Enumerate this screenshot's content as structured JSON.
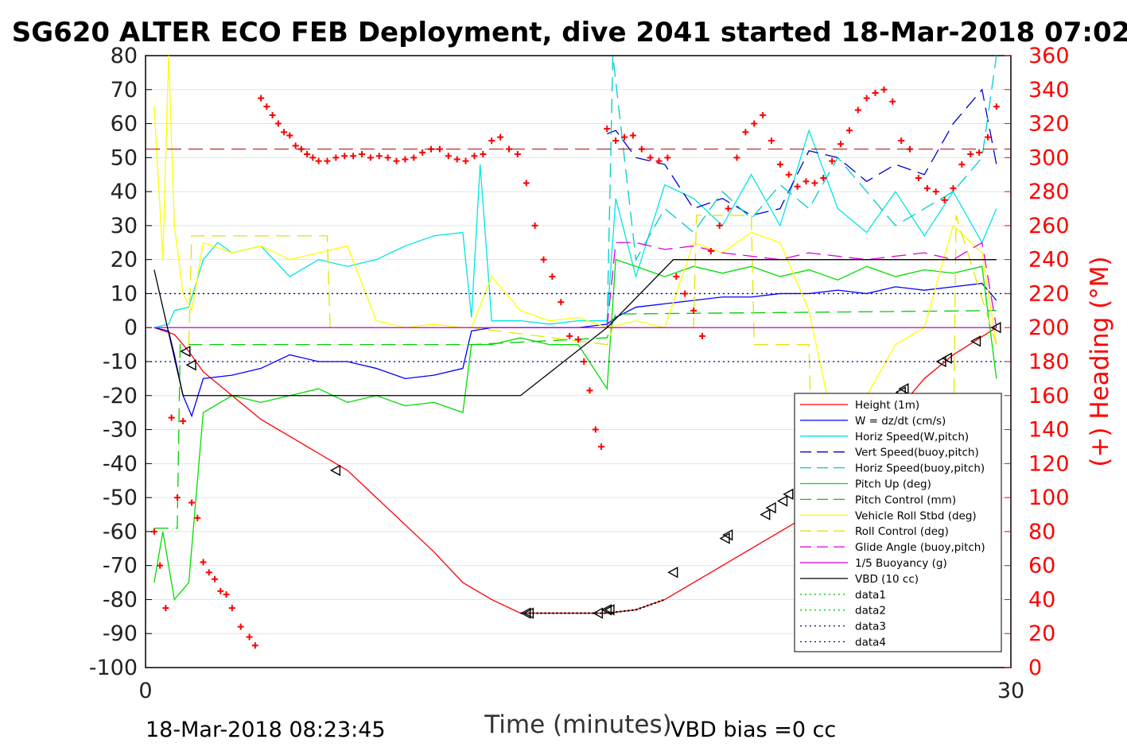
{
  "chart_data": {
    "type": "line",
    "title": "SG620 ALTER ECO FEB Deployment, dive 2041 started 18-Mar-2018 07:02",
    "xlabel": "Time (minutes)",
    "ylabel_right": "(+) Heading (°M)",
    "xlim": [
      0,
      30
    ],
    "ylim_left": [
      -100,
      80
    ],
    "ylim_right": [
      0,
      360
    ],
    "x_ticks": [
      "0",
      "30"
    ],
    "y_ticks_left": [
      "80",
      "70",
      "60",
      "50",
      "40",
      "30",
      "20",
      "10",
      "0",
      "-10",
      "-20",
      "-30",
      "-40",
      "-50",
      "-60",
      "-70",
      "-80",
      "-90",
      "-100"
    ],
    "y_ticks_right": [
      "360",
      "340",
      "320",
      "300",
      "280",
      "260",
      "240",
      "220",
      "200",
      "180",
      "160",
      "140",
      "120",
      "100",
      "80",
      "60",
      "40",
      "20",
      "0"
    ],
    "legend_position": "lower-right",
    "footer_left": "18-Mar-2018 08:23:45",
    "footer_right": "VBD bias =0 cc",
    "colors": {
      "height": "#ff0000",
      "w": "#0000ff",
      "hspeed": "#00e5e5",
      "vspeed_buoy": "#0000cc",
      "hspeed_buoy": "#00cccc",
      "pitch": "#00dd00",
      "pitch_ctrl": "#00cc00",
      "roll": "#ffff00",
      "roll_ctrl": "#e5e500",
      "glide": "#dd00dd",
      "buoy": "#cc00cc",
      "vbd": "#000000",
      "heading": "#ff0000"
    },
    "series": [
      {
        "name": "Height (1m)",
        "key": "height",
        "style": "solid",
        "x": [
          0.3,
          1,
          1.5,
          2,
          3,
          4,
          5,
          6,
          7,
          8,
          9,
          10,
          11,
          12,
          13,
          14,
          15,
          16,
          17,
          18,
          19,
          20,
          21,
          22,
          23,
          24,
          25,
          26,
          27,
          28,
          29.5
        ],
        "y": [
          0,
          -2,
          -7,
          -13,
          -20,
          -27,
          -32,
          -37,
          -42,
          -50,
          -58,
          -66,
          -75,
          -80,
          -84,
          -84,
          -84,
          -84,
          -83,
          -80,
          -75,
          -70,
          -65,
          -60,
          -55,
          -48,
          -38,
          -25,
          -15,
          -8,
          0
        ]
      },
      {
        "name": "W = dz/dt (cm/s)",
        "key": "w",
        "style": "solid",
        "x": [
          0.3,
          0.8,
          1,
          1.3,
          1.6,
          2,
          3,
          4,
          5,
          6,
          7,
          8,
          9,
          10,
          11,
          11.3,
          12,
          13,
          14,
          15,
          16,
          16.3,
          17,
          18,
          19,
          20,
          21,
          22,
          23,
          24,
          25,
          26,
          27,
          28,
          29,
          29.5
        ],
        "y": [
          0,
          -1,
          -8,
          -20,
          -26,
          -15,
          -14,
          -12,
          -8,
          -10,
          -10,
          -12,
          -15,
          -14,
          -12,
          -1,
          0,
          0,
          0,
          0,
          1,
          3,
          6,
          7,
          8,
          9,
          9,
          10,
          10,
          11,
          10,
          12,
          11,
          12,
          13,
          8
        ]
      },
      {
        "name": "Horiz Speed(W,pitch)",
        "key": "hspeed",
        "style": "solid",
        "x": [
          0.3,
          0.8,
          1,
          1.5,
          2,
          2.5,
          3,
          4,
          5,
          6,
          7,
          8,
          9,
          10,
          11,
          11.3,
          11.6,
          12,
          13,
          14,
          15,
          16,
          16.3,
          17,
          18,
          19,
          20,
          21,
          22,
          23,
          24,
          25,
          26,
          27,
          28,
          29,
          29.5
        ],
        "y": [
          0,
          1,
          5,
          6,
          20,
          25,
          22,
          24,
          15,
          20,
          18,
          20,
          24,
          27,
          28,
          3,
          48,
          2,
          2,
          1,
          2,
          2,
          38,
          15,
          42,
          38,
          30,
          45,
          30,
          58,
          35,
          28,
          40,
          27,
          40,
          25,
          35
        ]
      },
      {
        "name": "Vert Speed(buoy,pitch)",
        "key": "vspeed_buoy",
        "style": "dashed",
        "x": [
          16,
          16.3,
          17,
          18,
          19,
          20,
          21,
          22,
          23,
          24,
          25,
          26,
          27,
          28,
          29,
          29.5
        ],
        "y": [
          57,
          58,
          50,
          48,
          35,
          38,
          33,
          35,
          52,
          50,
          43,
          48,
          45,
          60,
          70,
          48
        ]
      },
      {
        "name": "Horiz Speed(buoy,pitch)",
        "key": "hspeed_buoy",
        "style": "dashed",
        "x": [
          16,
          16.2,
          17,
          18,
          19,
          20,
          21,
          22,
          23,
          24,
          25,
          26,
          27,
          28,
          29,
          29.5
        ],
        "y": [
          0,
          80,
          20,
          35,
          28,
          40,
          32,
          42,
          35,
          50,
          40,
          30,
          35,
          40,
          50,
          80
        ]
      },
      {
        "name": "Pitch Up (deg)",
        "key": "pitch",
        "style": "solid",
        "x": [
          0.3,
          0.6,
          1,
          1.5,
          2,
          3,
          4,
          5,
          6,
          7,
          8,
          9,
          10,
          11,
          11.3,
          12,
          13,
          14,
          15,
          16,
          16.3,
          17,
          18,
          19,
          20,
          21,
          22,
          23,
          24,
          25,
          26,
          27,
          28,
          29,
          29.5
        ],
        "y": [
          -75,
          -60,
          -80,
          -75,
          -25,
          -20,
          -22,
          -20,
          -18,
          -22,
          -20,
          -23,
          -22,
          -25,
          -5,
          -5,
          -3,
          -5,
          -5,
          -18,
          20,
          18,
          15,
          18,
          16,
          18,
          15,
          17,
          14,
          18,
          15,
          17,
          16,
          18,
          -15
        ]
      },
      {
        "name": "Pitch Control (mm)",
        "key": "pitch_ctrl",
        "style": "dashed",
        "x": [
          0.3,
          1.1,
          1.2,
          1.6,
          11.3,
          16,
          16.3,
          29.5
        ],
        "y": [
          -59,
          -59,
          -5,
          -5,
          -5,
          -3,
          4,
          5
        ]
      },
      {
        "name": "Vehicle Roll Stbd (deg)",
        "key": "roll",
        "style": "solid",
        "x": [
          0.3,
          0.6,
          0.8,
          1,
          1.3,
          1.6,
          2,
          3,
          4,
          5,
          6,
          7,
          8,
          9,
          10,
          11,
          11.3,
          12,
          13,
          14,
          15,
          16,
          17,
          18,
          19,
          20,
          21,
          22,
          23,
          24,
          25,
          26,
          27,
          28,
          29,
          29.5
        ],
        "y": [
          65,
          20,
          80,
          30,
          10,
          5,
          25,
          22,
          24,
          20,
          22,
          24,
          2,
          0,
          1,
          0,
          0,
          15,
          5,
          2,
          3,
          0,
          2,
          0,
          25,
          22,
          28,
          25,
          5,
          -35,
          -20,
          -5,
          0,
          30,
          22,
          -5
        ]
      },
      {
        "name": "Roll Control (deg)",
        "key": "roll_ctrl",
        "style": "dashed",
        "x": [
          1.5,
          1.6,
          6.3,
          6.4,
          11.3,
          16,
          16.2,
          19,
          19.1,
          21,
          21.1,
          23,
          23.1,
          28,
          28.1,
          29.5
        ],
        "y": [
          -5,
          27,
          27,
          0,
          0,
          -5,
          0,
          0,
          33,
          33,
          -5,
          -5,
          -40,
          -40,
          33,
          -5
        ]
      },
      {
        "name": "Glide Angle (buoy,pitch)",
        "key": "glide",
        "style": "dashed",
        "x": [
          16,
          16.3,
          17,
          18,
          19,
          20,
          21,
          22,
          23,
          24,
          25,
          26,
          27,
          28,
          29,
          29.5
        ],
        "y": [
          0,
          25,
          25,
          23,
          24,
          22,
          21,
          20,
          22,
          21,
          20,
          21,
          22,
          20,
          25,
          0
        ]
      },
      {
        "name": "1/5 Buoyancy (g)",
        "key": "buoy",
        "style": "solid",
        "x": [
          0.3,
          29.5
        ],
        "y": [
          0,
          0
        ]
      },
      {
        "name": "VBD (10 cc)",
        "key": "vbd",
        "style": "solid",
        "x": [
          0.3,
          1.3,
          13,
          16,
          18.3,
          29.5
        ],
        "y": [
          17,
          -20,
          -20,
          0,
          20,
          20
        ]
      },
      {
        "name": "data1",
        "key": "data1",
        "style": "dotted",
        "x": [],
        "y": []
      },
      {
        "name": "data2",
        "key": "data2",
        "style": "dotted",
        "x": [],
        "y": []
      },
      {
        "name": "data3",
        "key": "data3",
        "style": "dotted",
        "x": [
          0,
          30
        ],
        "y": [
          10,
          10
        ]
      },
      {
        "name": "data4",
        "key": "data4",
        "style": "dotted",
        "x": [
          0,
          30
        ],
        "y": [
          -10,
          -10
        ]
      }
    ],
    "heading": {
      "axis": "right",
      "x": [
        0.3,
        0.5,
        0.7,
        0.9,
        1.1,
        1.3,
        1.6,
        1.8,
        2,
        2.2,
        2.4,
        2.6,
        2.8,
        3,
        3.3,
        3.6,
        3.8,
        4,
        4.2,
        4.4,
        4.6,
        4.8,
        5,
        5.2,
        5.4,
        5.6,
        5.8,
        6,
        6.3,
        6.6,
        6.9,
        7.2,
        7.5,
        7.8,
        8.1,
        8.4,
        8.7,
        9,
        9.3,
        9.6,
        9.9,
        10.2,
        10.5,
        10.8,
        11.1,
        11.4,
        11.7,
        12,
        12.3,
        12.6,
        12.9,
        13.2,
        13.5,
        13.8,
        14.1,
        14.4,
        14.7,
        15,
        15.2,
        15.4,
        15.6,
        15.8,
        16,
        16.3,
        16.6,
        16.9,
        17.2,
        17.5,
        17.8,
        18.1,
        18.4,
        18.7,
        19,
        19.3,
        19.6,
        19.9,
        20.2,
        20.5,
        20.8,
        21.1,
        21.4,
        21.7,
        22,
        22.3,
        22.6,
        22.9,
        23.2,
        23.5,
        23.8,
        24.1,
        24.4,
        24.7,
        25,
        25.3,
        25.6,
        25.9,
        26.2,
        26.5,
        26.8,
        27.1,
        27.4,
        27.7,
        28,
        28.3,
        28.6,
        28.9,
        29.2,
        29.5
      ],
      "values": [
        80,
        60,
        35,
        147,
        100,
        145,
        97,
        88,
        62,
        56,
        52,
        45,
        43,
        35,
        24,
        18,
        13,
        335,
        330,
        325,
        320,
        315,
        313,
        307,
        305,
        302,
        300,
        298,
        298,
        300,
        301,
        301,
        302,
        300,
        301,
        300,
        298,
        299,
        300,
        303,
        305,
        305,
        301,
        299,
        298,
        301,
        302,
        310,
        312,
        305,
        302,
        285,
        260,
        240,
        230,
        215,
        195,
        193,
        180,
        163,
        140,
        130,
        317,
        310,
        312,
        313,
        305,
        300,
        298,
        300,
        230,
        220,
        210,
        195,
        245,
        260,
        270,
        300,
        315,
        320,
        325,
        310,
        296,
        290,
        283,
        286,
        285,
        288,
        298,
        308,
        316,
        328,
        335,
        338,
        340,
        333,
        310,
        305,
        288,
        282,
        280,
        275,
        282,
        296,
        302,
        303,
        312,
        330
      ]
    },
    "markers": {
      "x": [
        1.4,
        1.6,
        6.6,
        13.2,
        13.3,
        15.7,
        16.0,
        16.1,
        18.3,
        20.1,
        20.2,
        21.5,
        21.7,
        22.1,
        22.3,
        26.2,
        26.3,
        27.6,
        27.8,
        28.8,
        29.5
      ],
      "y": [
        -7,
        -11,
        -42,
        -84,
        -84,
        -84,
        -83,
        -83,
        -72,
        -62,
        -61,
        -55,
        -53,
        -51,
        -49,
        -19,
        -18,
        -10,
        -9,
        -4,
        0
      ]
    }
  }
}
